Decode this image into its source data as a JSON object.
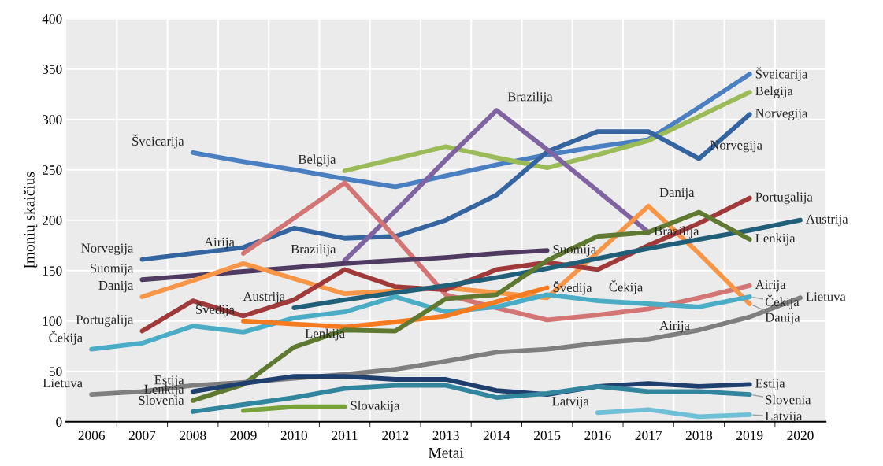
{
  "chart_data": {
    "type": "line",
    "xlabel": "Metai",
    "ylabel": "Įmonių skaičius",
    "categories": [
      "2006",
      "2007",
      "2008",
      "2009",
      "2010",
      "2011",
      "2012",
      "2013",
      "2014",
      "2015",
      "2016",
      "2017",
      "2018",
      "2019",
      "2020"
    ],
    "ylim": [
      0,
      400
    ],
    "yticks": [
      0,
      50,
      100,
      150,
      200,
      250,
      300,
      350,
      400
    ],
    "grid": true,
    "legend": false,
    "series": [
      {
        "name": "Šveicarija",
        "color": "#4a7fc1",
        "values": [
          null,
          null,
          267,
          258,
          250,
          241,
          233,
          244,
          255,
          265,
          273,
          280,
          312,
          345,
          null
        ]
      },
      {
        "name": "Belgija",
        "color": "#9bbb59",
        "values": [
          null,
          null,
          null,
          null,
          null,
          249,
          261,
          273,
          262,
          252,
          265,
          279,
          303,
          327,
          null
        ]
      },
      {
        "name": "Norvegija",
        "color": "#3465a0",
        "values": [
          null,
          161,
          167,
          173,
          192,
          182,
          184,
          200,
          225,
          268,
          288,
          288,
          261,
          305,
          null
        ]
      },
      {
        "name": "Brazilija",
        "color": "#8064a2",
        "values": [
          null,
          null,
          null,
          null,
          null,
          160,
          209,
          260,
          309,
          270,
          229,
          188,
          null,
          null,
          null
        ]
      },
      {
        "name": "Airija",
        "color": "#d47575",
        "values": [
          null,
          null,
          null,
          167,
          202,
          237,
          183,
          126,
          113,
          101,
          106,
          112,
          123,
          135,
          null
        ]
      },
      {
        "name": "Suomija",
        "color": "#4f3b62",
        "values": [
          null,
          141,
          145,
          149,
          153,
          157,
          160,
          163,
          167,
          170,
          null,
          null,
          null,
          null,
          null
        ]
      },
      {
        "name": "Danija",
        "color": "#f79646",
        "values": [
          null,
          124,
          140,
          157,
          142,
          127,
          130,
          133,
          128,
          123,
          168,
          214,
          167,
          117,
          null
        ]
      },
      {
        "name": "Portugalija",
        "color": "#a03a3a",
        "values": [
          null,
          90,
          120,
          105,
          121,
          151,
          134,
          131,
          151,
          158,
          151,
          175,
          197,
          222,
          null
        ]
      },
      {
        "name": "Austrija",
        "color": "#215f78",
        "values": [
          null,
          null,
          null,
          null,
          113,
          121,
          128,
          135,
          143,
          152,
          162,
          172,
          181,
          190,
          200
        ]
      },
      {
        "name": "Čekija",
        "color": "#4bacc6",
        "values": [
          72,
          78,
          95,
          89,
          103,
          109,
          124,
          109,
          114,
          126,
          120,
          117,
          114,
          124,
          null
        ]
      },
      {
        "name": "Švedija",
        "color": "#f47b20",
        "values": [
          null,
          null,
          null,
          100,
          97,
          94,
          99,
          105,
          119,
          133,
          null,
          null,
          null,
          null,
          null
        ]
      },
      {
        "name": "Lenkija",
        "color": "#5f7a30",
        "values": [
          null,
          null,
          21,
          37,
          74,
          91,
          90,
          122,
          126,
          160,
          184,
          188,
          208,
          181,
          null
        ]
      },
      {
        "name": "Lietuva",
        "color": "#7f7f7f",
        "values": [
          27,
          30,
          36,
          39,
          43,
          47,
          52,
          60,
          69,
          72,
          78,
          82,
          91,
          104,
          123
        ]
      },
      {
        "name": "Estija",
        "color": "#1f3f6e",
        "values": [
          null,
          null,
          30,
          38,
          45,
          45,
          42,
          42,
          31,
          27,
          35,
          38,
          35,
          37,
          null
        ]
      },
      {
        "name": "Slovenia",
        "color": "#31859c",
        "values": [
          null,
          null,
          10,
          17,
          24,
          33,
          36,
          36,
          24,
          28,
          35,
          30,
          30,
          27,
          null
        ]
      },
      {
        "name": "Slovakija",
        "color": "#77a33a",
        "values": [
          null,
          null,
          null,
          11,
          15,
          15,
          null,
          null,
          null,
          null,
          null,
          null,
          null,
          null,
          null
        ]
      },
      {
        "name": "Latvija",
        "color": "#6fc0d6",
        "values": [
          null,
          null,
          null,
          null,
          null,
          null,
          null,
          null,
          null,
          null,
          9,
          12,
          5,
          7,
          null
        ]
      }
    ],
    "annotations": [
      {
        "text": "Šveicarija",
        "x": "2008",
        "y": 267
      },
      {
        "text": "Norvegija",
        "x": "2007",
        "y": 161
      },
      {
        "text": "Suomija",
        "x": "2007",
        "y": 141
      },
      {
        "text": "Danija",
        "x": "2007",
        "y": 124
      },
      {
        "text": "Portugalija",
        "x": "2007",
        "y": 90
      },
      {
        "text": "Čekija",
        "x": "2006",
        "y": 72
      },
      {
        "text": "Lietuva",
        "x": "2006",
        "y": 27
      },
      {
        "text": "Estija",
        "x": "2008",
        "y": 30
      },
      {
        "text": "Slovenia",
        "x": "2008",
        "y": 10
      },
      {
        "text": "Lenkija",
        "x": "2008",
        "y": 21
      },
      {
        "text": "Belgija",
        "x": "2011",
        "y": 249
      },
      {
        "text": "Airija",
        "x": "2009",
        "y": 167
      },
      {
        "text": "Brazilija",
        "x": "2011",
        "y": 160
      },
      {
        "text": "Austrija",
        "x": "2010",
        "y": 113
      },
      {
        "text": "Švedija",
        "x": "2009",
        "y": 100
      },
      {
        "text": "Lenkija",
        "x": "2010",
        "y": 74
      },
      {
        "text": "Brazilija",
        "x": "2014",
        "y": 309
      },
      {
        "text": "Norvegija",
        "x": "2018",
        "y": 261
      },
      {
        "text": "Danija",
        "x": "2017",
        "y": 214
      },
      {
        "text": "Čekija",
        "x": "2016",
        "y": 120
      },
      {
        "text": "Airija",
        "x": "2017",
        "y": 82
      },
      {
        "text": "Latvija",
        "x": "2016",
        "y": 9
      }
    ]
  }
}
